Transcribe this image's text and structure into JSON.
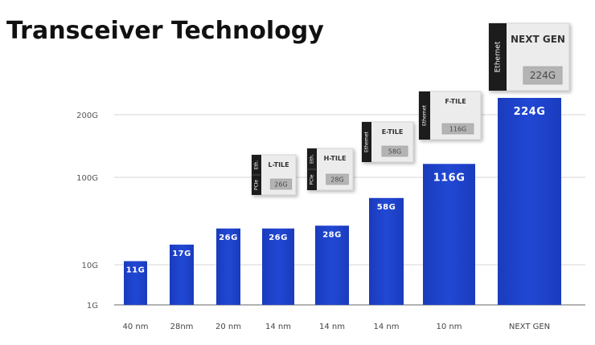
{
  "title": "Transceiver Technology",
  "chart_data": {
    "type": "bar",
    "y_scale": "log",
    "y_ticks": [
      {
        "label": "1G",
        "value": 1
      },
      {
        "label": "10G",
        "value": 10
      },
      {
        "label": "100G",
        "value": 100
      },
      {
        "label": "200G",
        "value": 200
      }
    ],
    "categories": [
      "40 nm",
      "28nm",
      "20 nm",
      "14 nm",
      "14 nm",
      "14 nm",
      "10 nm",
      "NEXT GEN"
    ],
    "values": [
      11,
      17,
      26,
      26,
      28,
      58,
      116,
      224
    ],
    "value_labels": [
      "11G",
      "17G",
      "26G",
      "26G",
      "28G",
      "58G",
      "116G",
      "224G"
    ],
    "bar_color": "#1b3fc4",
    "grid": true,
    "tiles": [
      {
        "bar_index": 3,
        "name": "L-TILE",
        "side_labels": [
          "Eth.",
          "PCIe"
        ],
        "speed": "26G"
      },
      {
        "bar_index": 4,
        "name": "H-TILE",
        "side_labels": [
          "Eth.",
          "PCIe"
        ],
        "speed": "28G"
      },
      {
        "bar_index": 5,
        "name": "E-TILE",
        "side_labels": [
          "Ethernet"
        ],
        "speed": "58G"
      },
      {
        "bar_index": 6,
        "name": "F-TILE",
        "side_labels": [
          "Ethernet"
        ],
        "speed": "116G"
      },
      {
        "bar_index": 7,
        "name": "NEXT GEN",
        "side_labels": [
          "Ethernet"
        ],
        "speed": "224G"
      }
    ]
  }
}
